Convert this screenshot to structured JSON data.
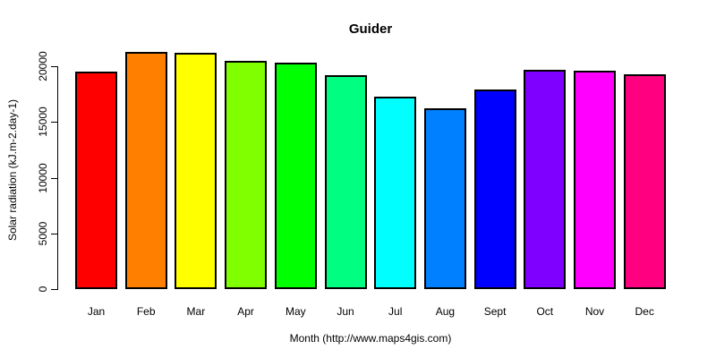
{
  "chart_data": {
    "type": "bar",
    "title": "Guider",
    "xlabel": "Month (http://www.maps4gis.com)",
    "ylabel": "Solar radiation (kJ.m-2.day-1)",
    "categories": [
      "Jan",
      "Feb",
      "Mar",
      "Apr",
      "May",
      "Jun",
      "Jul",
      "Aug",
      "Sept",
      "Oct",
      "Nov",
      "Dec"
    ],
    "values": [
      19500,
      21300,
      21200,
      20500,
      20300,
      19200,
      17300,
      16200,
      17900,
      19700,
      19600,
      19300
    ],
    "bar_colors": [
      "#FF0000",
      "#FF8000",
      "#FFFF00",
      "#80FF00",
      "#00FF00",
      "#00FF80",
      "#00FFFF",
      "#0080FF",
      "#0000FF",
      "#8000FF",
      "#FF00FF",
      "#FF0080"
    ],
    "y_ticks": [
      "0",
      "5000",
      "10000",
      "15000",
      "20000"
    ],
    "y_tick_values": [
      0,
      5000,
      10000,
      15000,
      20000
    ],
    "ylim": [
      0,
      20000
    ],
    "grid": false,
    "legend": "none",
    "bar_border_color": "#000000",
    "axis_color": "#000000",
    "text_color": "#000000",
    "background_color": "#FFFFFF"
  }
}
